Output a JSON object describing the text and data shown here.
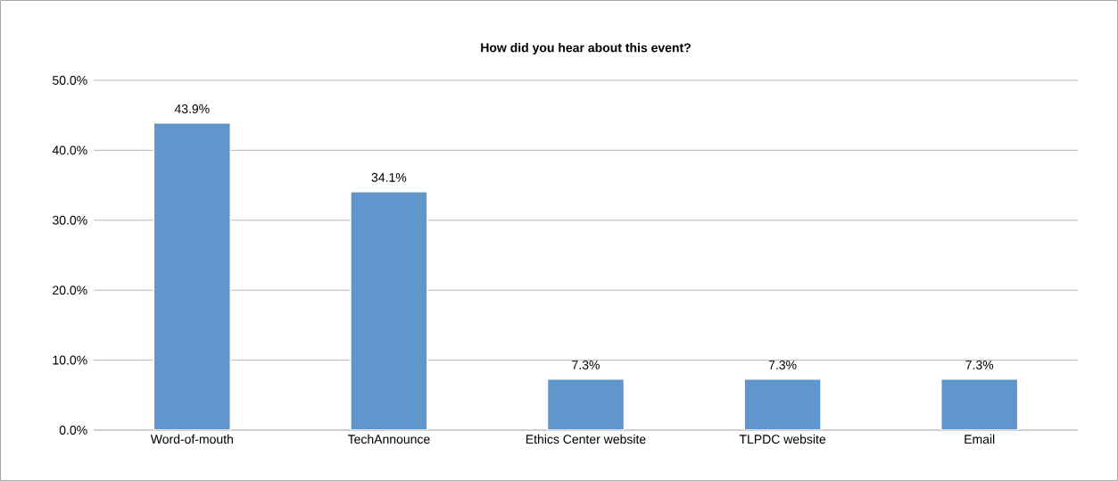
{
  "chart_data": {
    "type": "bar",
    "title": "How did you hear about this event?",
    "categories": [
      "Word-of-mouth",
      "TechAnnounce",
      "Ethics Center website",
      "TLPDC website",
      "Email"
    ],
    "values": [
      43.9,
      34.1,
      7.3,
      7.3,
      7.3
    ],
    "value_labels": [
      "43.9%",
      "34.1%",
      "7.3%",
      "7.3%",
      "7.3%"
    ],
    "color": "#6096cc",
    "ylim": [
      0,
      50
    ],
    "yticks": [
      {
        "value": 0,
        "label": "0.0%"
      },
      {
        "value": 10,
        "label": "10.0%"
      },
      {
        "value": 20,
        "label": "20.0%"
      },
      {
        "value": 30,
        "label": "30.0%"
      },
      {
        "value": 40,
        "label": "40.0%"
      },
      {
        "value": 50,
        "label": "50.0%"
      }
    ],
    "grid": "y"
  }
}
